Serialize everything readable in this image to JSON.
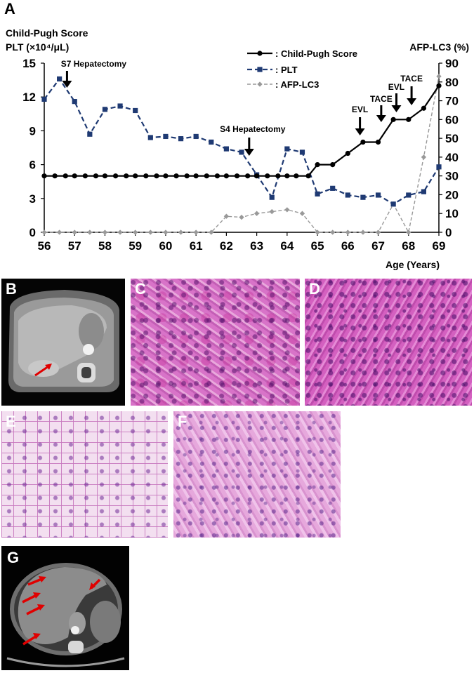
{
  "panels": {
    "a": "A",
    "b": "B",
    "c": "C",
    "d": "D",
    "e": "E",
    "f": "F",
    "g": "G"
  },
  "chart_data": {
    "type": "line",
    "left_axis_label_1": "Child-Pugh Score",
    "left_axis_label_2": "PLT (×10⁴/μL)",
    "right_axis_label": "AFP-LC3 (%)",
    "xlabel": "Age (Years)",
    "xlim": [
      56,
      69
    ],
    "xticks": [
      56,
      57,
      58,
      59,
      60,
      61,
      62,
      63,
      64,
      65,
      66,
      67,
      68,
      69
    ],
    "ylim_left": [
      0,
      15
    ],
    "yticks_left": [
      0,
      3,
      6,
      9,
      12,
      15
    ],
    "ylim_right": [
      0,
      90
    ],
    "yticks_right": [
      0,
      10,
      20,
      30,
      40,
      50,
      60,
      70,
      80,
      90
    ],
    "legend": {
      "position": "top-right",
      "entries": [
        ": Child-Pugh Score",
        ": PLT",
        ": AFP-LC3"
      ]
    },
    "series": [
      {
        "name": ": Child-Pugh Score",
        "axis": "left",
        "color": "#000000",
        "x": [
          56,
          56.35,
          56.7,
          57,
          57.35,
          57.7,
          58,
          58.35,
          58.7,
          59,
          59.35,
          59.7,
          60,
          60.35,
          60.7,
          61,
          61.35,
          61.7,
          62,
          62.35,
          62.7,
          63,
          63.35,
          63.7,
          64,
          64.3,
          64.7,
          65,
          65.5,
          66,
          66.5,
          67,
          67.5,
          68,
          68.5,
          69
        ],
        "values": [
          5,
          5,
          5,
          5,
          5,
          5,
          5,
          5,
          5,
          5,
          5,
          5,
          5,
          5,
          5,
          5,
          5,
          5,
          5,
          5,
          5,
          5,
          5,
          5,
          5,
          5,
          5,
          6,
          6,
          7,
          8,
          8,
          10,
          10,
          11,
          13
        ]
      },
      {
        "name": ": PLT",
        "axis": "left",
        "color": "#1f3a73",
        "x": [
          56,
          56.5,
          57,
          57.5,
          58,
          58.5,
          59,
          59.5,
          60,
          60.5,
          61,
          61.5,
          62,
          62.5,
          63,
          63.5,
          64,
          64.5,
          65,
          65.5,
          66,
          66.5,
          67,
          67.5,
          68,
          68.5,
          69
        ],
        "values": [
          11.8,
          13.6,
          11.6,
          8.7,
          10.9,
          11.2,
          10.8,
          8.4,
          8.5,
          8.3,
          8.5,
          8.0,
          7.4,
          7.1,
          5.1,
          3.1,
          7.4,
          7.1,
          3.4,
          3.9,
          3.3,
          3.1,
          3.3,
          2.5,
          3.3,
          3.6,
          5.8
        ]
      },
      {
        "name": ": AFP-LC3",
        "axis": "right",
        "color": "#999999",
        "x": [
          56,
          56.5,
          57,
          57.5,
          58,
          58.5,
          59,
          59.5,
          60,
          60.5,
          61,
          61.5,
          62,
          62.5,
          63,
          63.5,
          64,
          64.5,
          65,
          65.5,
          66,
          66.5,
          67,
          67.5,
          68,
          68.5,
          69
        ],
        "values": [
          0,
          0,
          0,
          0,
          0,
          0,
          0,
          0,
          0,
          0,
          0,
          0,
          8.5,
          8,
          10,
          11,
          12,
          10,
          0,
          0,
          0,
          0,
          0,
          15,
          0,
          40,
          83
        ]
      }
    ],
    "annotations": [
      {
        "text": "S7 Hepatectomy",
        "x": 56.75
      },
      {
        "text": "S4 Hepatectomy",
        "x": 62.75
      },
      {
        "text": "EVL",
        "x": 66.4
      },
      {
        "text": "TACE",
        "x": 67.1
      },
      {
        "text": "EVL",
        "x": 67.6
      },
      {
        "text": "TACE",
        "x": 68.1
      }
    ]
  }
}
